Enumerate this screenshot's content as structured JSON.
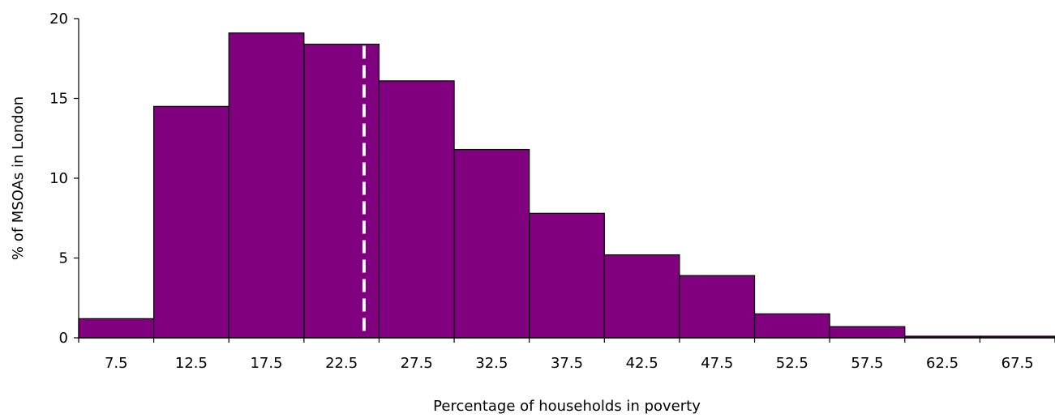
{
  "chart_data": {
    "type": "bar",
    "title": "",
    "xlabel": "Percentage of households in poverty",
    "ylabel": "% of MSOAs in London",
    "categories": [
      "7.5",
      "12.5",
      "17.5",
      "22.5",
      "27.5",
      "32.5",
      "37.5",
      "42.5",
      "47.5",
      "52.5",
      "57.5",
      "62.5",
      "67.5"
    ],
    "bin_edges": [
      5,
      10,
      15,
      20,
      25,
      30,
      35,
      40,
      45,
      50,
      55,
      60,
      65,
      70
    ],
    "values": [
      1.2,
      14.5,
      19.1,
      18.4,
      16.1,
      11.8,
      7.8,
      5.2,
      3.9,
      1.5,
      0.7,
      0.1,
      0.1
    ],
    "yticks": [
      "0",
      "5",
      "10",
      "15",
      "20"
    ],
    "ylim": [
      0,
      20
    ],
    "xlim": [
      5,
      70
    ],
    "reference_line": {
      "x": 24,
      "style": "dashed",
      "color": "#ffffff"
    },
    "grid": false,
    "colors": {
      "bar_fill": "#800080",
      "bar_stroke": "#000000"
    }
  }
}
